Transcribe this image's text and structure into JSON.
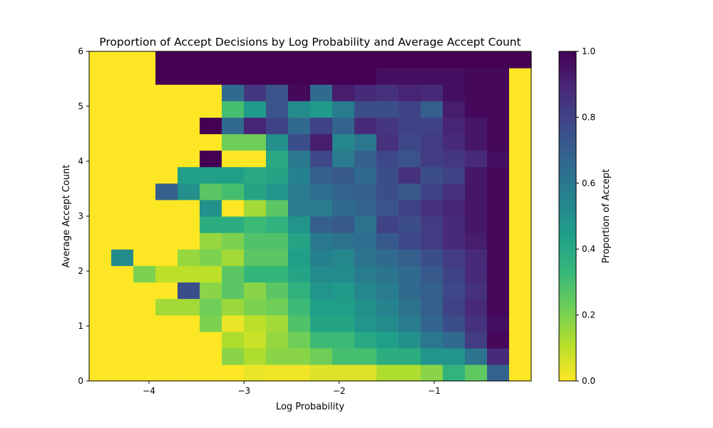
{
  "chart_data": {
    "type": "heatmap",
    "title": "Proportion of Accept Decisions by Log Probability and Average Accept Count",
    "xlabel": "Log Probability",
    "ylabel": "Average Accept Count",
    "xlim": [
      -4.63,
      0.02
    ],
    "ylim": [
      0,
      6
    ],
    "x_ticks": [
      -4,
      -3,
      -2,
      -1
    ],
    "x_tick_labels": [
      "−4",
      "−3",
      "−2",
      "−1"
    ],
    "y_ticks": [
      0,
      1,
      2,
      3,
      4,
      5,
      6
    ],
    "y_tick_labels": [
      "0",
      "1",
      "2",
      "3",
      "4",
      "5",
      "6"
    ],
    "x_bin_edges": [
      -4.63,
      -4.3975,
      -4.165,
      -3.9325,
      -3.7,
      -3.4675,
      -3.235,
      -3.0025,
      -2.77,
      -2.5375,
      -2.305,
      -2.0725,
      -1.84,
      -1.6075,
      -1.375,
      -1.1425,
      -0.91,
      -0.6775,
      -0.445,
      -0.2125,
      0.02
    ],
    "y_bin_edges": [
      0,
      0.3,
      0.6,
      0.9,
      1.2,
      1.5,
      1.8,
      2.1,
      2.4,
      2.7,
      3.0,
      3.3,
      3.6,
      3.9,
      4.2,
      4.5,
      4.8,
      5.1,
      5.4,
      5.7,
      6.0
    ],
    "colorbar": {
      "label": "Proportion of Accept",
      "range": [
        0,
        1
      ],
      "ticks": [
        0,
        0.2,
        0.4,
        0.6,
        0.8,
        1.0
      ],
      "tick_labels": [
        "0.0",
        "0.2",
        "0.4",
        "0.6",
        "0.8",
        "1.0"
      ],
      "colormap": "viridis_r"
    },
    "colormap_stops": [
      "#fde725",
      "#b5de2b",
      "#6ece58",
      "#35b779",
      "#1f9e89",
      "#26828e",
      "#31688e",
      "#3e4989",
      "#482878",
      "#440154"
    ],
    "values": [
      [
        0,
        0,
        0,
        0,
        0,
        0,
        0,
        0.03,
        0.02,
        0.02,
        0.05,
        0.05,
        0.05,
        0.12,
        0.12,
        0.18,
        0.35,
        0.25,
        0.68,
        0
      ],
      [
        0,
        0,
        0,
        0,
        0,
        0,
        0.18,
        0.12,
        0.18,
        0.18,
        0.22,
        0.3,
        0.3,
        0.38,
        0.38,
        0.48,
        0.48,
        0.62,
        0.88,
        0
      ],
      [
        0,
        0,
        0,
        0,
        0,
        0,
        0.12,
        0.08,
        0.16,
        0.22,
        0.32,
        0.32,
        0.4,
        0.44,
        0.5,
        0.6,
        0.66,
        0.82,
        0.98,
        0
      ],
      [
        0,
        0,
        0,
        0,
        0,
        0.2,
        0.03,
        0.1,
        0.14,
        0.28,
        0.42,
        0.42,
        0.48,
        0.52,
        0.58,
        0.68,
        0.76,
        0.86,
        0.96,
        0
      ],
      [
        0,
        0,
        0,
        0.14,
        0.14,
        0.22,
        0.15,
        0.2,
        0.22,
        0.32,
        0.44,
        0.44,
        0.5,
        0.55,
        0.62,
        0.7,
        0.8,
        0.88,
        0.98,
        0
      ],
      [
        0,
        0,
        0,
        0,
        0.76,
        0.18,
        0.26,
        0.18,
        0.26,
        0.36,
        0.48,
        0.46,
        0.54,
        0.58,
        0.66,
        0.7,
        0.78,
        0.86,
        0.98,
        0
      ],
      [
        0,
        0,
        0.2,
        0.1,
        0.1,
        0.1,
        0.26,
        0.34,
        0.34,
        0.42,
        0.52,
        0.52,
        0.58,
        0.62,
        0.66,
        0.72,
        0.8,
        0.88,
        0.98,
        0
      ],
      [
        0,
        0.52,
        0,
        0,
        0.16,
        0.2,
        0.14,
        0.26,
        0.26,
        0.44,
        0.56,
        0.54,
        0.62,
        0.66,
        0.7,
        0.76,
        0.82,
        0.88,
        0.98,
        0
      ],
      [
        0,
        0,
        0,
        0,
        0,
        0.16,
        0.2,
        0.28,
        0.28,
        0.42,
        0.6,
        0.62,
        0.64,
        0.72,
        0.78,
        0.82,
        0.88,
        0.92,
        0.98,
        0
      ],
      [
        0,
        0,
        0,
        0,
        0,
        0.38,
        0.38,
        0.32,
        0.36,
        0.48,
        0.7,
        0.72,
        0.62,
        0.8,
        0.76,
        0.82,
        0.88,
        0.94,
        0.98,
        0
      ],
      [
        0,
        0,
        0,
        0,
        0,
        0.5,
        0,
        0.14,
        0.26,
        0.58,
        0.58,
        0.66,
        0.68,
        0.74,
        0.8,
        0.86,
        0.9,
        0.94,
        0.98,
        0
      ],
      [
        0,
        0,
        0,
        0.7,
        0.5,
        0.26,
        0.3,
        0.42,
        0.48,
        0.58,
        0.64,
        0.68,
        0.7,
        0.76,
        0.72,
        0.8,
        0.86,
        0.94,
        0.98,
        0
      ],
      [
        0,
        0,
        0,
        0,
        0.44,
        0.44,
        0.44,
        0.4,
        0.42,
        0.56,
        0.7,
        0.72,
        0.66,
        0.76,
        0.86,
        0.76,
        0.8,
        0.94,
        0.98,
        0
      ],
      [
        0,
        0,
        0,
        0,
        0,
        1,
        0,
        0,
        0.4,
        0.6,
        0.78,
        0.58,
        0.7,
        0.78,
        0.74,
        0.82,
        0.84,
        0.88,
        0.96,
        0
      ],
      [
        0,
        0,
        0,
        0,
        0,
        0,
        0.22,
        0.22,
        0.5,
        0.76,
        0.92,
        0.54,
        0.6,
        0.86,
        0.78,
        0.82,
        0.88,
        0.94,
        0.98,
        0
      ],
      [
        0,
        0,
        0,
        0,
        0,
        1,
        0.66,
        0.9,
        0.8,
        0.66,
        0.8,
        0.68,
        0.88,
        0.84,
        0.8,
        0.8,
        0.9,
        0.94,
        0.98,
        0
      ],
      [
        0,
        0,
        0,
        0,
        0,
        0,
        0.3,
        0.46,
        0.74,
        0.52,
        0.46,
        0.58,
        0.76,
        0.76,
        0.8,
        0.7,
        0.92,
        0.98,
        0.98,
        0
      ],
      [
        0,
        0,
        0,
        0,
        0,
        0,
        0.66,
        0.84,
        0.74,
        0.98,
        0.66,
        0.92,
        0.88,
        0.86,
        0.9,
        0.88,
        0.96,
        0.98,
        0.98,
        0
      ],
      [
        0,
        0,
        0,
        1,
        1,
        1,
        1,
        1,
        1,
        1,
        1,
        1,
        1,
        0.96,
        0.96,
        0.96,
        0.96,
        0.98,
        0.98,
        0
      ],
      [
        0,
        0,
        0,
        1,
        1,
        1,
        1,
        1,
        1,
        1,
        1,
        1,
        1,
        1,
        1,
        1,
        1,
        1,
        1,
        1
      ]
    ]
  }
}
